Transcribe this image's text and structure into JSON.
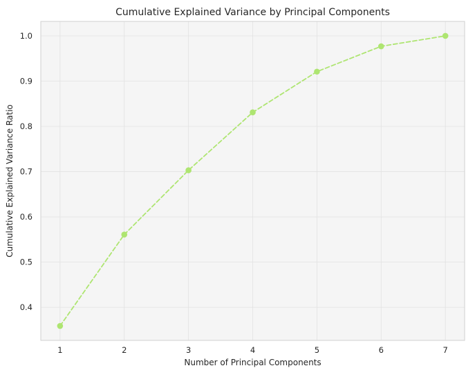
{
  "chart_data": {
    "type": "line",
    "title": "Cumulative Explained Variance by Principal Components",
    "xlabel": "Number of Principal Components",
    "ylabel": "Cumulative Explained Variance Ratio",
    "x": [
      1,
      2,
      3,
      4,
      5,
      6,
      7
    ],
    "xticks": [
      "1",
      "2",
      "3",
      "4",
      "5",
      "6",
      "7"
    ],
    "yticks": [
      "0.4",
      "0.5",
      "0.6",
      "0.7",
      "0.8",
      "0.9",
      "1.0"
    ],
    "series": [
      {
        "values": [
          0.359,
          0.561,
          0.703,
          0.831,
          0.921,
          0.977,
          1.0
        ],
        "color": "#aee571",
        "line_style": "dashed",
        "marker": "circle"
      }
    ],
    "xlim": [
      0.7,
      7.3
    ],
    "ylim": [
      0.327,
      1.032
    ],
    "grid": true,
    "background_color": "#f5f5f5",
    "grid_color": "#e2e2e2",
    "spine_color": "#d0d0d0"
  }
}
